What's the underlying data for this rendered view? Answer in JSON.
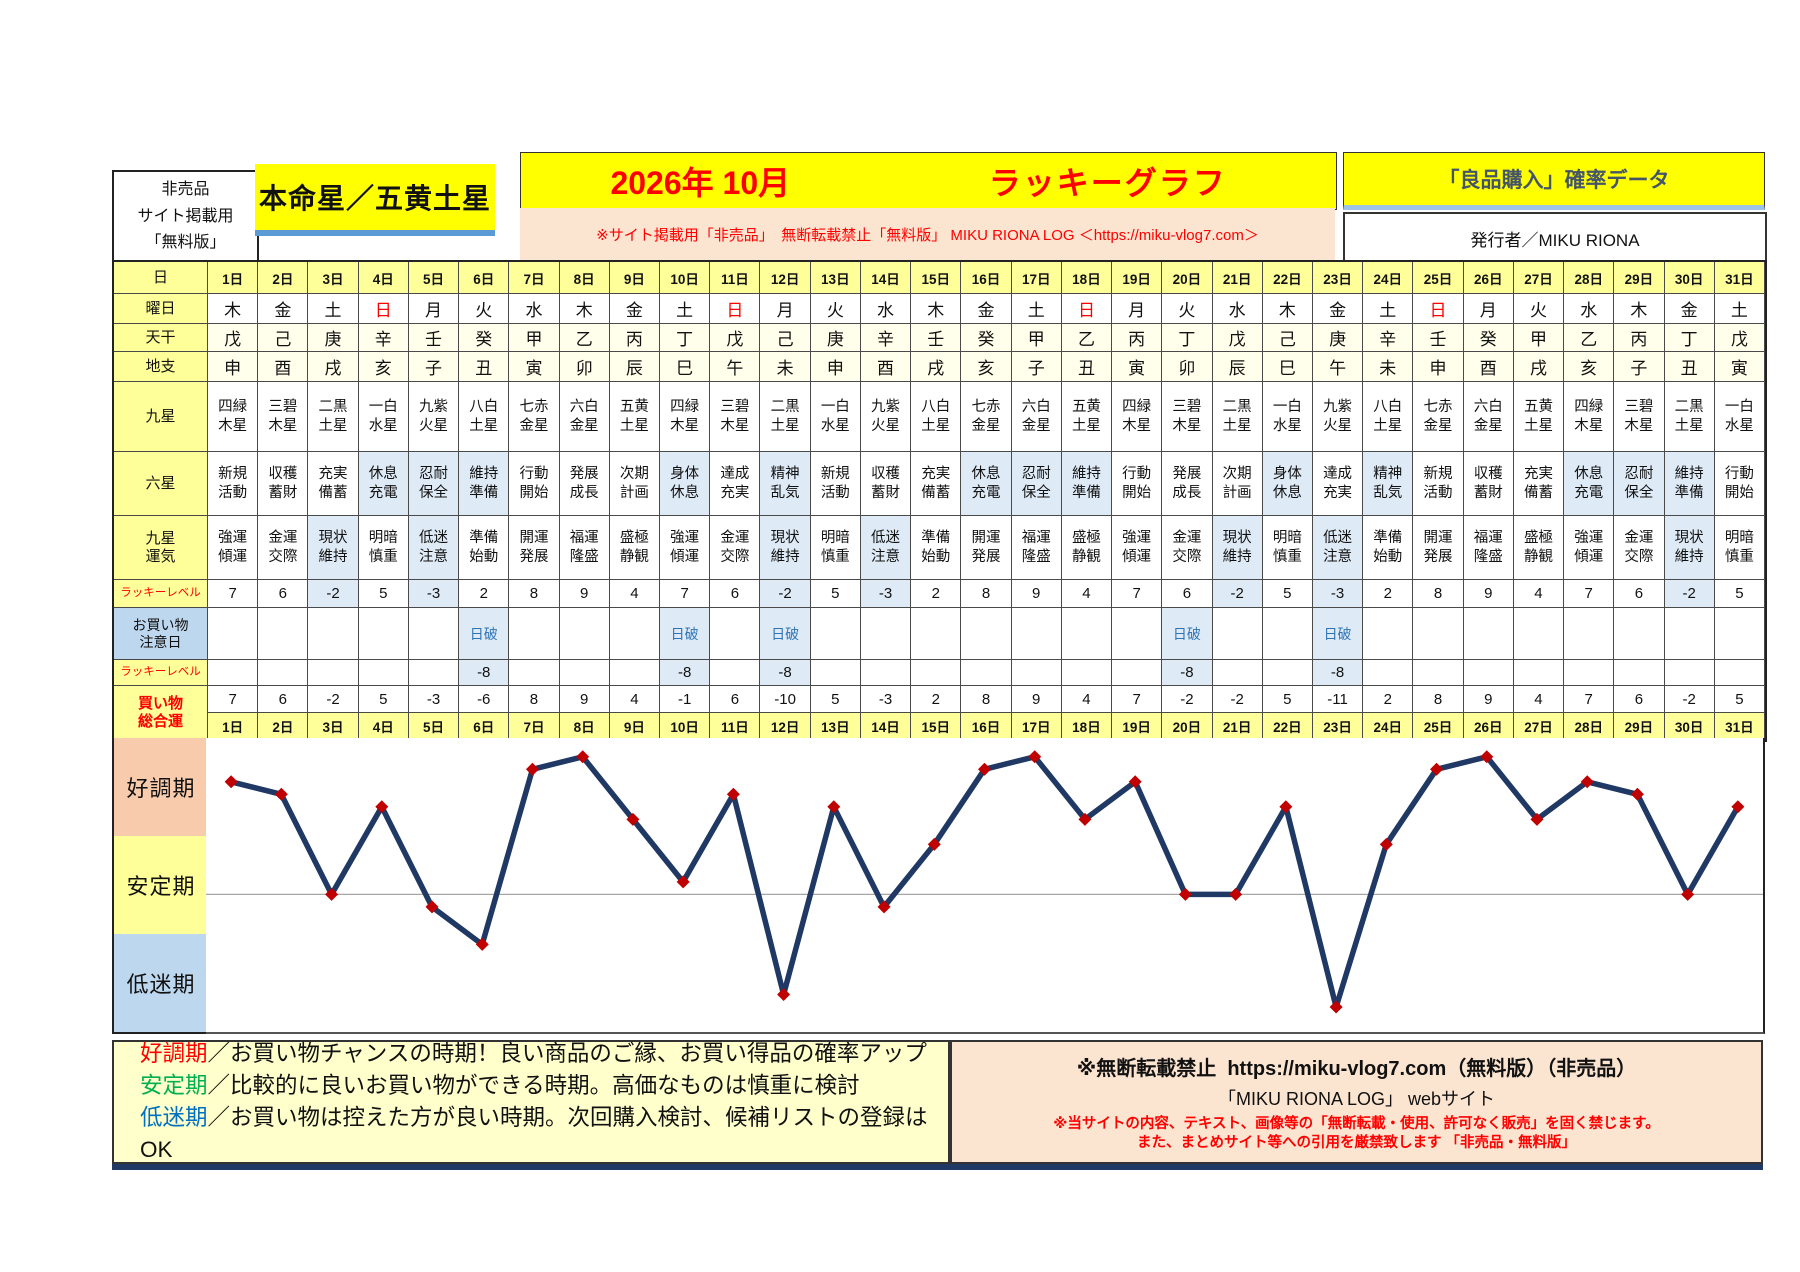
{
  "header": {
    "left_note_lines": [
      "非売品",
      "サイト掲載用",
      "「無料版」"
    ],
    "honmeisei": "本命星／五黄土星",
    "title_date": "2026年 10月",
    "title_main": "ラッキーグラフ",
    "subtitle": "※サイト掲載用「非売品」　無断転載禁止「無料版」 MIKU RIONA LOG ＜https://miku-vlog7.com＞",
    "right_box": "「良品購入」確率データ",
    "publisher": "発行者／MIKU RIONA"
  },
  "table": {
    "day": {
      "label": "日",
      "values": [
        "1日",
        "2日",
        "3日",
        "4日",
        "5日",
        "6日",
        "7日",
        "8日",
        "9日",
        "10日",
        "11日",
        "12日",
        "13日",
        "14日",
        "15日",
        "16日",
        "17日",
        "18日",
        "19日",
        "20日",
        "21日",
        "22日",
        "23日",
        "24日",
        "25日",
        "26日",
        "27日",
        "28日",
        "29日",
        "30日",
        "31日"
      ]
    },
    "weekday": {
      "label": "曜日",
      "values": [
        "木",
        "金",
        "土",
        "日",
        "月",
        "火",
        "水",
        "木",
        "金",
        "土",
        "日",
        "月",
        "火",
        "水",
        "木",
        "金",
        "土",
        "日",
        "月",
        "火",
        "水",
        "木",
        "金",
        "土",
        "日",
        "月",
        "火",
        "水",
        "木",
        "金",
        "土"
      ],
      "red_value": "日"
    },
    "tenkan": {
      "label": "天干",
      "values": [
        "戊",
        "己",
        "庚",
        "辛",
        "壬",
        "癸",
        "甲",
        "乙",
        "丙",
        "丁",
        "戊",
        "己",
        "庚",
        "辛",
        "壬",
        "癸",
        "甲",
        "乙",
        "丙",
        "丁",
        "戊",
        "己",
        "庚",
        "辛",
        "壬",
        "癸",
        "甲",
        "乙",
        "丙",
        "丁",
        "戊"
      ]
    },
    "chishi": {
      "label": "地支",
      "values": [
        "申",
        "酉",
        "戌",
        "亥",
        "子",
        "丑",
        "寅",
        "卯",
        "辰",
        "巳",
        "午",
        "未",
        "申",
        "酉",
        "戌",
        "亥",
        "子",
        "丑",
        "寅",
        "卯",
        "辰",
        "巳",
        "午",
        "未",
        "申",
        "酉",
        "戌",
        "亥",
        "子",
        "丑",
        "寅"
      ]
    },
    "kyusei": {
      "label": "九星",
      "values": [
        "四緑木星",
        "三碧木星",
        "二黒土星",
        "一白水星",
        "九紫火星",
        "八白土星",
        "七赤金星",
        "六白金星",
        "五黄土星",
        "四緑木星",
        "三碧木星",
        "二黒土星",
        "一白水星",
        "九紫火星",
        "八白土星",
        "七赤金星",
        "六白金星",
        "五黄土星",
        "四緑木星",
        "三碧木星",
        "二黒土星",
        "一白水星",
        "九紫火星",
        "八白土星",
        "七赤金星",
        "六白金星",
        "五黄土星",
        "四緑木星",
        "三碧木星",
        "二黒土星",
        "一白水星"
      ]
    },
    "rokusei": {
      "label": "六星",
      "values": [
        "新規活動",
        "収穫蓄財",
        "充実備蓄",
        "休息充電",
        "忍耐保全",
        "維持準備",
        "行動開始",
        "発展成長",
        "次期計画",
        "身体休息",
        "達成充実",
        "精神乱気",
        "新規活動",
        "収穫蓄財",
        "充実備蓄",
        "休息充電",
        "忍耐保全",
        "維持準備",
        "行動開始",
        "発展成長",
        "次期計画",
        "身体休息",
        "達成充実",
        "精神乱気",
        "新規活動",
        "収穫蓄財",
        "充実備蓄",
        "休息充電",
        "忍耐保全",
        "維持準備",
        "行動開始"
      ],
      "highlight_days": [
        4,
        5,
        6,
        10,
        12,
        16,
        17,
        18,
        22,
        24,
        28,
        29,
        30
      ]
    },
    "unki": {
      "label": "九星\n運気",
      "values": [
        "強運傾運",
        "金運交際",
        "現状維持",
        "明暗慎重",
        "低迷注意",
        "準備始動",
        "開運発展",
        "福運隆盛",
        "盛極静観",
        "強運傾運",
        "金運交際",
        "現状維持",
        "明暗慎重",
        "低迷注意",
        "準備始動",
        "開運発展",
        "福運隆盛",
        "盛極静観",
        "強運傾運",
        "金運交際",
        "現状維持",
        "明暗慎重",
        "低迷注意",
        "準備始動",
        "開運発展",
        "福運隆盛",
        "盛極静観",
        "強運傾運",
        "金運交際",
        "現状維持",
        "明暗慎重"
      ],
      "highlight_days": [
        3,
        5,
        12,
        14,
        21,
        23,
        30
      ]
    },
    "lucky": {
      "label": "ラッキーレベル",
      "values": [
        7,
        6,
        -2,
        5,
        -3,
        2,
        8,
        9,
        4,
        7,
        6,
        -2,
        5,
        -3,
        2,
        8,
        9,
        4,
        7,
        6,
        -2,
        5,
        -3,
        2,
        8,
        9,
        4,
        7,
        6,
        -2,
        5
      ],
      "highlight_days": [
        3,
        5,
        12,
        14,
        21,
        23,
        30
      ]
    },
    "caution": {
      "label": "お買い物\n注意日",
      "mark": "日破",
      "mark_days": [
        6,
        10,
        12,
        20,
        23
      ]
    },
    "lucky2": {
      "label": "ラッキーレベル",
      "mark": "-8",
      "mark_days": [
        6,
        10,
        12,
        20,
        23
      ]
    },
    "shopping": {
      "label": "買い物\n総合運",
      "values": [
        7,
        6,
        -2,
        5,
        -3,
        -6,
        8,
        9,
        4,
        -1,
        6,
        -10,
        5,
        -3,
        2,
        8,
        9,
        4,
        7,
        -2,
        -2,
        5,
        -11,
        2,
        8,
        9,
        4,
        7,
        6,
        -2,
        5
      ]
    }
  },
  "chart_data": {
    "type": "line",
    "title": "2026年 10月 ラッキーグラフ（買い物総合運）",
    "x": [
      1,
      2,
      3,
      4,
      5,
      6,
      7,
      8,
      9,
      10,
      11,
      12,
      13,
      14,
      15,
      16,
      17,
      18,
      19,
      20,
      21,
      22,
      23,
      24,
      25,
      26,
      27,
      28,
      29,
      30,
      31
    ],
    "x_tick_labels": [
      "1日",
      "2日",
      "3日",
      "4日",
      "5日",
      "6日",
      "7日",
      "8日",
      "9日",
      "10日",
      "11日",
      "12日",
      "13日",
      "14日",
      "15日",
      "16日",
      "17日",
      "18日",
      "19日",
      "20日",
      "21日",
      "22日",
      "23日",
      "24日",
      "25日",
      "26日",
      "27日",
      "28日",
      "29日",
      "30日",
      "31日"
    ],
    "series": [
      {
        "name": "買い物総合運",
        "values": [
          7,
          6,
          -2,
          5,
          -3,
          -6,
          8,
          9,
          4,
          -1,
          6,
          -10,
          5,
          -3,
          2,
          8,
          9,
          4,
          7,
          -2,
          -2,
          5,
          -11,
          2,
          8,
          9,
          4,
          7,
          6,
          -2,
          5
        ]
      }
    ],
    "y_bands": [
      {
        "label": "好調期",
        "color": "#F8CBAD"
      },
      {
        "label": "安定期",
        "color": "#FFFF99"
      },
      {
        "label": "低迷期",
        "color": "#BDD7EE"
      }
    ],
    "ylim": [
      -13,
      10.5
    ],
    "gridline_y": -2,
    "grid": "single-horizontal",
    "legend_position": "left",
    "line_color": "#1F3864",
    "marker": "diamond",
    "marker_color": "#C00000"
  },
  "footer": {
    "separator": "／",
    "legend": [
      {
        "term": "好調期",
        "desc": "お買い物チャンスの時期！良い商品のご縁、お買い得品の確率アップ"
      },
      {
        "term": "安定期",
        "desc": "比較的に良いお買い物ができる時期。高価なものは慎重に検討"
      },
      {
        "term": "低迷期",
        "desc": "お買い物は控えた方が良い時期。次回購入検討、候補リストの登録はOK"
      }
    ],
    "notice_bold": "※無断転載禁止",
    "notice_rest": "https://miku-vlog7.com（無料版）（非売品）",
    "site_line": "「MIKU RIONA LOG」 webサイト",
    "warning_line1": "※当サイトの内容、テキスト、画像等の「無断転載・使用、許可なく販売」を固く禁じます。",
    "warning_line2": "また、まとめサイト等への引用を厳禁致します 「非売品・無料版」"
  },
  "colors": {
    "title_red": "#FF0000",
    "header_yellow": "#FFFF00",
    "label_yellow": "#FFFF99",
    "pale_ivory": "#FFFFEB",
    "highlight_blue": "#DEEAF6",
    "caution_header_blue": "#BDD7EE",
    "hiha_text_blue": "#2E74B5",
    "subtitle_peach": "#FBE5D0",
    "right_title_text": "#44546A",
    "underline_blue": "#5B9BD5",
    "line_navy": "#1F3864",
    "marker_red": "#C00000",
    "legend_good": "#FF0000",
    "legend_stable": "#00B050",
    "legend_low": "#0070C0",
    "footer_left_bg": "#FFFFCC",
    "bottom_bar_navy": "#1F3864"
  }
}
